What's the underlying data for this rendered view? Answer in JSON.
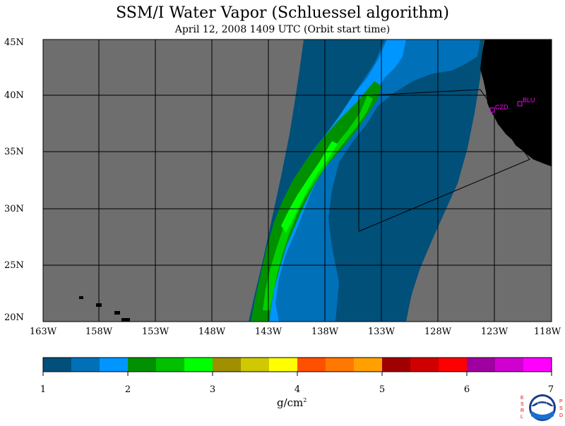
{
  "title": "SSM/I Water Vapor (Schluessel algorithm)",
  "subtitle": "April 12, 2008  1409 UTC  (Orbit start time)",
  "lat_labels": [
    "45N",
    "40N",
    "35N",
    "30N",
    "25N",
    "20N"
  ],
  "lon_labels": [
    "163W",
    "158W",
    "153W",
    "148W",
    "143W",
    "138W",
    "133W",
    "128W",
    "123W",
    "118W"
  ],
  "colorbar": {
    "ticks": [
      "1",
      "2",
      "3",
      "4",
      "5",
      "6",
      "7"
    ],
    "units": "g/cm",
    "units_sup": "2",
    "colors": [
      "#00507a",
      "#0070b8",
      "#0096ff",
      "#009000",
      "#00c000",
      "#00ff00",
      "#a09000",
      "#d0c800",
      "#ffff00",
      "#ff5000",
      "#ff7800",
      "#ffa000",
      "#a00000",
      "#d00000",
      "#ff0000",
      "#a000a0",
      "#d000d0",
      "#ff00ff"
    ]
  },
  "stations": [
    {
      "name": "CZD"
    },
    {
      "name": "BLU"
    }
  ],
  "logo": {
    "text": "NOAA",
    "left_letters": "ESRL",
    "right_letters": "PSD"
  },
  "map_colors": {
    "nodata": "#6e6e6e",
    "land": "#000000",
    "grid": "#000000"
  }
}
